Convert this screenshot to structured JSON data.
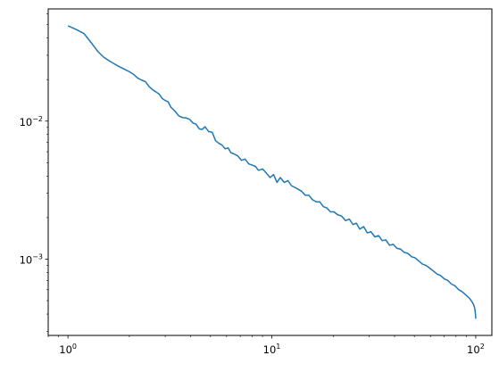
{
  "chart_data": {
    "type": "line",
    "title": "",
    "xlabel": "",
    "ylabel": "",
    "x_scale": "log",
    "y_scale": "log",
    "xlim": [
      0.8,
      120
    ],
    "ylim": [
      0.00028,
      0.065
    ],
    "grid": false,
    "legend": "none",
    "line_color": "#1f77b4",
    "x_tick_labels": [
      {
        "value": 1,
        "base": "10",
        "exp": "0"
      },
      {
        "value": 10,
        "base": "10",
        "exp": "1"
      },
      {
        "value": 100,
        "base": "10",
        "exp": "2"
      }
    ],
    "y_tick_labels": [
      {
        "value": 0.001,
        "base": "10",
        "exp": "−3"
      },
      {
        "value": 0.01,
        "base": "10",
        "exp": "−2"
      }
    ],
    "series": [
      {
        "x": [
          1.0,
          1.05,
          1.1,
          1.15,
          1.2,
          1.3,
          1.4,
          1.5,
          1.6,
          1.75,
          1.9,
          2.0,
          2.1,
          2.2,
          2.3,
          2.4,
          2.5,
          2.6,
          2.7,
          2.8,
          2.9,
          3.0,
          3.1,
          3.2,
          3.35,
          3.5,
          3.65,
          3.8,
          3.95,
          4.1,
          4.25,
          4.4,
          4.55,
          4.7,
          4.9,
          5.1,
          5.3,
          5.5,
          5.7,
          5.9,
          6.1,
          6.3,
          6.5,
          6.8,
          7.1,
          7.4,
          7.7,
          8.0,
          8.3,
          8.6,
          9.0,
          9.4,
          9.8,
          10.2,
          10.6,
          11.0,
          11.5,
          12.0,
          12.5,
          13.0,
          13.5,
          14.0,
          14.6,
          15.2,
          15.8,
          16.5,
          17.2,
          17.9,
          18.6,
          19.4,
          20.2,
          21.0,
          22.0,
          23.0,
          24.0,
          25.0,
          26.0,
          27.0,
          28.2,
          29.4,
          30.6,
          32.0,
          33.4,
          34.8,
          36.2,
          37.8,
          39.4,
          41.0,
          42.8,
          44.6,
          46.5,
          48.5,
          50.5,
          52.6,
          54.8,
          57.1,
          59.5,
          62.0,
          64.6,
          67.3,
          70.1,
          73.0,
          76.0,
          79.2,
          82.5,
          85.9,
          89.5,
          93.2,
          96.0,
          97.5,
          98.5,
          99.2,
          99.7,
          100.0
        ],
        "y": [
          0.049,
          0.0475,
          0.046,
          0.0445,
          0.043,
          0.037,
          0.032,
          0.029,
          0.0272,
          0.0252,
          0.0237,
          0.0228,
          0.0218,
          0.0205,
          0.0198,
          0.0193,
          0.0178,
          0.0169,
          0.0163,
          0.0157,
          0.0146,
          0.0141,
          0.0138,
          0.0126,
          0.0118,
          0.0109,
          0.0106,
          0.01055,
          0.0103,
          0.0097,
          0.0095,
          0.0088,
          0.0087,
          0.0091,
          0.0084,
          0.0083,
          0.0072,
          0.0069,
          0.0067,
          0.0063,
          0.0064,
          0.0059,
          0.0058,
          0.0056,
          0.0052,
          0.0053,
          0.0049,
          0.0048,
          0.0047,
          0.0044,
          0.0045,
          0.0042,
          0.0039,
          0.0041,
          0.0036,
          0.0039,
          0.0036,
          0.0037,
          0.0034,
          0.0033,
          0.0032,
          0.0031,
          0.0029,
          0.0029,
          0.0027,
          0.0026,
          0.0026,
          0.0024,
          0.00235,
          0.0022,
          0.0022,
          0.0021,
          0.00205,
          0.0019,
          0.00195,
          0.00178,
          0.00182,
          0.00165,
          0.00172,
          0.00155,
          0.00158,
          0.00145,
          0.00148,
          0.00136,
          0.00138,
          0.00126,
          0.00128,
          0.0012,
          0.00118,
          0.00112,
          0.0011,
          0.00104,
          0.00102,
          0.00097,
          0.00092,
          0.0009,
          0.00086,
          0.00082,
          0.00078,
          0.00076,
          0.00072,
          0.0007,
          0.00066,
          0.00064,
          0.0006,
          0.00058,
          0.00055,
          0.00052,
          0.00049,
          0.00047,
          0.00045,
          0.00043,
          0.0004,
          0.00037
        ]
      }
    ]
  }
}
